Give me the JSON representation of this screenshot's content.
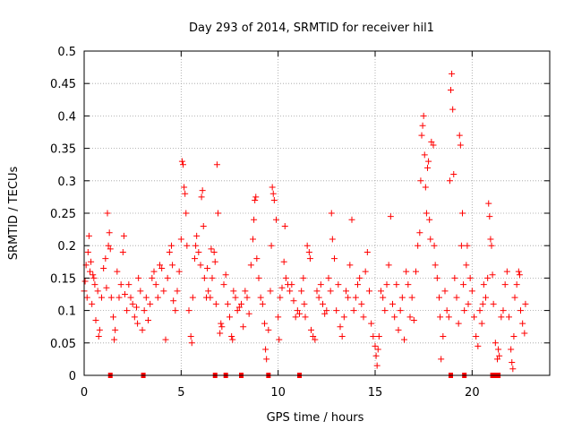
{
  "chart_data": {
    "type": "scatter",
    "title": "Day 293 of 2014, SRMTID for receiver hil1",
    "xlabel": "GPS time / hours",
    "ylabel": "SRMTID / TECUs",
    "xlim": [
      0,
      24
    ],
    "ylim": [
      0,
      0.5
    ],
    "xticks": [
      0,
      5,
      10,
      15,
      20
    ],
    "xtick_labels": [
      "0",
      "5",
      "10",
      "15",
      "20"
    ],
    "yticks": [
      0,
      0.05,
      0.1,
      0.15,
      0.2,
      0.25,
      0.3,
      0.35,
      0.4,
      0.45,
      0.5
    ],
    "ytick_labels": [
      "0",
      "0.05",
      "0.1",
      "0.15",
      "0.2",
      "0.25",
      "0.3",
      "0.35",
      "0.4",
      "0.45",
      "0.5"
    ],
    "grid": true,
    "marker": "+",
    "color": "#ff0000",
    "series": [
      {
        "name": "SRMTID hil1",
        "points": [
          [
            0.0,
            0.13
          ],
          [
            0.05,
            0.145
          ],
          [
            0.1,
            0.17
          ],
          [
            0.15,
            0.12
          ],
          [
            0.2,
            0.19
          ],
          [
            0.25,
            0.215
          ],
          [
            0.3,
            0.16
          ],
          [
            0.35,
            0.175
          ],
          [
            0.4,
            0.11
          ],
          [
            0.45,
            0.155
          ],
          [
            0.5,
            0.15
          ],
          [
            0.55,
            0.14
          ],
          [
            0.6,
            0.085
          ],
          [
            0.7,
            0.13
          ],
          [
            0.75,
            0.06
          ],
          [
            0.8,
            0.07
          ],
          [
            0.9,
            0.12
          ],
          [
            1.0,
            0.165
          ],
          [
            1.1,
            0.18
          ],
          [
            1.15,
            0.135
          ],
          [
            1.2,
            0.25
          ],
          [
            1.25,
            0.2
          ],
          [
            1.3,
            0.22
          ],
          [
            1.35,
            0.195
          ],
          [
            1.4,
            0.12
          ],
          [
            1.5,
            0.09
          ],
          [
            1.55,
            0.055
          ],
          [
            1.6,
            0.07
          ],
          [
            1.7,
            0.16
          ],
          [
            1.8,
            0.12
          ],
          [
            1.9,
            0.14
          ],
          [
            2.0,
            0.19
          ],
          [
            2.05,
            0.215
          ],
          [
            2.1,
            0.125
          ],
          [
            2.2,
            0.1
          ],
          [
            2.3,
            0.14
          ],
          [
            2.4,
            0.12
          ],
          [
            2.5,
            0.11
          ],
          [
            2.6,
            0.09
          ],
          [
            2.7,
            0.105
          ],
          [
            2.75,
            0.08
          ],
          [
            2.8,
            0.15
          ],
          [
            2.9,
            0.13
          ],
          [
            3.0,
            0.07
          ],
          [
            3.1,
            0.1
          ],
          [
            3.2,
            0.12
          ],
          [
            3.3,
            0.085
          ],
          [
            3.4,
            0.11
          ],
          [
            3.5,
            0.15
          ],
          [
            3.6,
            0.16
          ],
          [
            3.7,
            0.14
          ],
          [
            3.8,
            0.12
          ],
          [
            3.9,
            0.17
          ],
          [
            4.0,
            0.165
          ],
          [
            4.1,
            0.13
          ],
          [
            4.2,
            0.055
          ],
          [
            4.3,
            0.15
          ],
          [
            4.4,
            0.19
          ],
          [
            4.5,
            0.2
          ],
          [
            4.55,
            0.17
          ],
          [
            4.6,
            0.115
          ],
          [
            4.7,
            0.1
          ],
          [
            4.8,
            0.13
          ],
          [
            4.9,
            0.16
          ],
          [
            5.0,
            0.21
          ],
          [
            5.05,
            0.33
          ],
          [
            5.1,
            0.325
          ],
          [
            5.15,
            0.29
          ],
          [
            5.2,
            0.28
          ],
          [
            5.25,
            0.25
          ],
          [
            5.3,
            0.2
          ],
          [
            5.4,
            0.1
          ],
          [
            5.5,
            0.06
          ],
          [
            5.55,
            0.05
          ],
          [
            5.6,
            0.12
          ],
          [
            5.7,
            0.18
          ],
          [
            5.75,
            0.2
          ],
          [
            5.8,
            0.215
          ],
          [
            5.9,
            0.19
          ],
          [
            6.0,
            0.17
          ],
          [
            6.05,
            0.275
          ],
          [
            6.1,
            0.285
          ],
          [
            6.15,
            0.23
          ],
          [
            6.2,
            0.15
          ],
          [
            6.3,
            0.12
          ],
          [
            6.35,
            0.165
          ],
          [
            6.4,
            0.13
          ],
          [
            6.5,
            0.12
          ],
          [
            6.55,
            0.195
          ],
          [
            6.6,
            0.15
          ],
          [
            6.7,
            0.19
          ],
          [
            6.75,
            0.175
          ],
          [
            6.8,
            0.11
          ],
          [
            6.85,
            0.325
          ],
          [
            6.9,
            0.25
          ],
          [
            7.0,
            0.065
          ],
          [
            7.05,
            0.08
          ],
          [
            7.1,
            0.075
          ],
          [
            7.2,
            0.14
          ],
          [
            7.3,
            0.155
          ],
          [
            7.4,
            0.11
          ],
          [
            7.5,
            0.09
          ],
          [
            7.6,
            0.06
          ],
          [
            7.65,
            0.055
          ],
          [
            7.7,
            0.13
          ],
          [
            7.8,
            0.12
          ],
          [
            7.9,
            0.1
          ],
          [
            8.0,
            0.105
          ],
          [
            8.1,
            0.11
          ],
          [
            8.2,
            0.075
          ],
          [
            8.3,
            0.13
          ],
          [
            8.4,
            0.12
          ],
          [
            8.5,
            0.095
          ],
          [
            8.6,
            0.17
          ],
          [
            8.7,
            0.21
          ],
          [
            8.75,
            0.24
          ],
          [
            8.8,
            0.27
          ],
          [
            8.85,
            0.275
          ],
          [
            8.9,
            0.18
          ],
          [
            9.0,
            0.15
          ],
          [
            9.1,
            0.12
          ],
          [
            9.2,
            0.11
          ],
          [
            9.3,
            0.08
          ],
          [
            9.35,
            0.04
          ],
          [
            9.4,
            0.025
          ],
          [
            9.5,
            0.07
          ],
          [
            9.6,
            0.13
          ],
          [
            9.65,
            0.2
          ],
          [
            9.7,
            0.29
          ],
          [
            9.75,
            0.28
          ],
          [
            9.8,
            0.27
          ],
          [
            9.9,
            0.24
          ],
          [
            10.0,
            0.09
          ],
          [
            10.05,
            0.055
          ],
          [
            10.1,
            0.12
          ],
          [
            10.2,
            0.135
          ],
          [
            10.3,
            0.175
          ],
          [
            10.35,
            0.23
          ],
          [
            10.4,
            0.15
          ],
          [
            10.5,
            0.14
          ],
          [
            10.6,
            0.13
          ],
          [
            10.7,
            0.14
          ],
          [
            10.8,
            0.115
          ],
          [
            10.9,
            0.09
          ],
          [
            11.0,
            0.1
          ],
          [
            11.1,
            0.095
          ],
          [
            11.2,
            0.13
          ],
          [
            11.3,
            0.15
          ],
          [
            11.35,
            0.11
          ],
          [
            11.4,
            0.09
          ],
          [
            11.5,
            0.2
          ],
          [
            11.6,
            0.19
          ],
          [
            11.65,
            0.18
          ],
          [
            11.7,
            0.07
          ],
          [
            11.8,
            0.06
          ],
          [
            11.9,
            0.055
          ],
          [
            12.0,
            0.13
          ],
          [
            12.1,
            0.12
          ],
          [
            12.2,
            0.14
          ],
          [
            12.3,
            0.11
          ],
          [
            12.4,
            0.095
          ],
          [
            12.5,
            0.1
          ],
          [
            12.6,
            0.15
          ],
          [
            12.7,
            0.13
          ],
          [
            12.75,
            0.25
          ],
          [
            12.8,
            0.21
          ],
          [
            12.9,
            0.18
          ],
          [
            13.0,
            0.1
          ],
          [
            13.1,
            0.14
          ],
          [
            13.2,
            0.075
          ],
          [
            13.3,
            0.06
          ],
          [
            13.4,
            0.09
          ],
          [
            13.5,
            0.13
          ],
          [
            13.6,
            0.12
          ],
          [
            13.7,
            0.17
          ],
          [
            13.8,
            0.24
          ],
          [
            13.9,
            0.1
          ],
          [
            14.0,
            0.12
          ],
          [
            14.1,
            0.14
          ],
          [
            14.2,
            0.15
          ],
          [
            14.3,
            0.11
          ],
          [
            14.4,
            0.09
          ],
          [
            14.5,
            0.16
          ],
          [
            14.6,
            0.19
          ],
          [
            14.7,
            0.13
          ],
          [
            14.8,
            0.08
          ],
          [
            14.9,
            0.06
          ],
          [
            15.0,
            0.045
          ],
          [
            15.05,
            0.03
          ],
          [
            15.1,
            0.015
          ],
          [
            15.15,
            0.04
          ],
          [
            15.2,
            0.06
          ],
          [
            15.3,
            0.13
          ],
          [
            15.4,
            0.12
          ],
          [
            15.5,
            0.1
          ],
          [
            15.6,
            0.14
          ],
          [
            15.7,
            0.17
          ],
          [
            15.8,
            0.245
          ],
          [
            15.9,
            0.11
          ],
          [
            16.0,
            0.09
          ],
          [
            16.1,
            0.14
          ],
          [
            16.2,
            0.07
          ],
          [
            16.3,
            0.1
          ],
          [
            16.4,
            0.12
          ],
          [
            16.5,
            0.055
          ],
          [
            16.6,
            0.16
          ],
          [
            16.7,
            0.14
          ],
          [
            16.8,
            0.09
          ],
          [
            16.9,
            0.12
          ],
          [
            17.0,
            0.085
          ],
          [
            17.1,
            0.16
          ],
          [
            17.2,
            0.2
          ],
          [
            17.3,
            0.22
          ],
          [
            17.35,
            0.3
          ],
          [
            17.4,
            0.37
          ],
          [
            17.45,
            0.385
          ],
          [
            17.5,
            0.4
          ],
          [
            17.55,
            0.34
          ],
          [
            17.6,
            0.29
          ],
          [
            17.65,
            0.25
          ],
          [
            17.7,
            0.32
          ],
          [
            17.75,
            0.33
          ],
          [
            17.8,
            0.24
          ],
          [
            17.85,
            0.21
          ],
          [
            17.9,
            0.36
          ],
          [
            18.0,
            0.355
          ],
          [
            18.05,
            0.2
          ],
          [
            18.1,
            0.17
          ],
          [
            18.2,
            0.15
          ],
          [
            18.3,
            0.12
          ],
          [
            18.35,
            0.09
          ],
          [
            18.4,
            0.025
          ],
          [
            18.5,
            0.06
          ],
          [
            18.6,
            0.13
          ],
          [
            18.7,
            0.1
          ],
          [
            18.8,
            0.09
          ],
          [
            18.85,
            0.3
          ],
          [
            18.9,
            0.44
          ],
          [
            18.95,
            0.465
          ],
          [
            19.0,
            0.41
          ],
          [
            19.05,
            0.31
          ],
          [
            19.1,
            0.15
          ],
          [
            19.2,
            0.12
          ],
          [
            19.3,
            0.08
          ],
          [
            19.35,
            0.37
          ],
          [
            19.4,
            0.355
          ],
          [
            19.45,
            0.2
          ],
          [
            19.5,
            0.25
          ],
          [
            19.55,
            0.14
          ],
          [
            19.6,
            0.1
          ],
          [
            19.7,
            0.17
          ],
          [
            19.75,
            0.2
          ],
          [
            19.8,
            0.11
          ],
          [
            19.9,
            0.15
          ],
          [
            20.0,
            0.13
          ],
          [
            20.1,
            0.09
          ],
          [
            20.2,
            0.06
          ],
          [
            20.3,
            0.045
          ],
          [
            20.4,
            0.1
          ],
          [
            20.5,
            0.08
          ],
          [
            20.55,
            0.11
          ],
          [
            20.6,
            0.14
          ],
          [
            20.7,
            0.12
          ],
          [
            20.8,
            0.15
          ],
          [
            20.85,
            0.265
          ],
          [
            20.9,
            0.245
          ],
          [
            20.95,
            0.21
          ],
          [
            21.0,
            0.2
          ],
          [
            21.05,
            0.155
          ],
          [
            21.1,
            0.11
          ],
          [
            21.2,
            0.05
          ],
          [
            21.3,
            0.025
          ],
          [
            21.35,
            0.04
          ],
          [
            21.4,
            0.03
          ],
          [
            21.5,
            0.09
          ],
          [
            21.6,
            0.1
          ],
          [
            21.7,
            0.14
          ],
          [
            21.8,
            0.16
          ],
          [
            21.9,
            0.09
          ],
          [
            22.0,
            0.04
          ],
          [
            22.05,
            0.02
          ],
          [
            22.1,
            0.01
          ],
          [
            22.15,
            0.06
          ],
          [
            22.2,
            0.12
          ],
          [
            22.3,
            0.14
          ],
          [
            22.4,
            0.16
          ],
          [
            22.45,
            0.155
          ],
          [
            22.5,
            0.1
          ],
          [
            22.6,
            0.08
          ],
          [
            22.7,
            0.065
          ],
          [
            22.75,
            0.11
          ]
        ]
      }
    ],
    "zero_markers_x": [
      1.35,
      3.05,
      6.75,
      7.3,
      8.1,
      9.5,
      11.1,
      18.9,
      19.6,
      21.05,
      21.2,
      21.35
    ]
  }
}
